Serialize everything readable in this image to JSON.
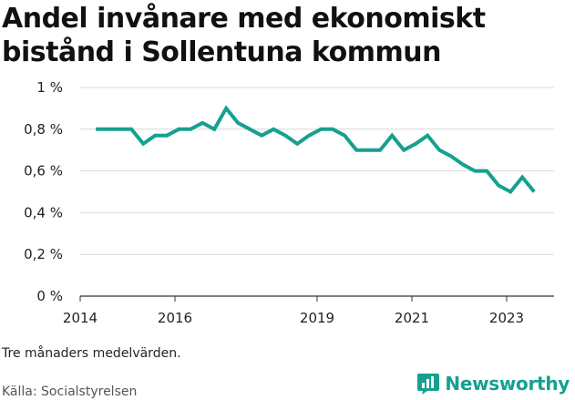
{
  "header": {
    "title": "Andel invånare med ekonomiskt bistånd i Sollentuna kommun"
  },
  "footer": {
    "note": "Tre månaders medelvärden.",
    "source": "Källa: Socialstyrelsen",
    "brand": "Newsworthy"
  },
  "colors": {
    "line": "#16a08f",
    "grid": "#d9d9d9",
    "axis": "#333333",
    "brand": "#16a08f"
  },
  "chart_data": {
    "type": "line",
    "title": "Andel invånare med ekonomiskt bistånd i Sollentuna kommun",
    "xlabel": "",
    "ylabel": "",
    "ylim": [
      0,
      1
    ],
    "xlim": [
      2014.0,
      2024.0
    ],
    "grid": true,
    "y_ticks": [
      {
        "value": 0,
        "label": "0 %"
      },
      {
        "value": 0.2,
        "label": "0,2 %"
      },
      {
        "value": 0.4,
        "label": "0,4 %"
      },
      {
        "value": 0.6,
        "label": "0,6 %"
      },
      {
        "value": 0.8,
        "label": "0,8 %"
      },
      {
        "value": 1,
        "label": "1 %"
      }
    ],
    "x_ticks": [
      {
        "value": 2014,
        "label": "2014"
      },
      {
        "value": 2016,
        "label": "2016"
      },
      {
        "value": 2019,
        "label": "2019"
      },
      {
        "value": 2021,
        "label": "2021"
      },
      {
        "value": 2023,
        "label": "2023"
      }
    ],
    "series": [
      {
        "x": [
          2014.33,
          2014.58,
          2014.83,
          2015.08,
          2015.33,
          2015.58,
          2015.83,
          2016.08,
          2016.33,
          2016.58,
          2016.83,
          2017.08,
          2017.33,
          2017.58,
          2017.83,
          2018.08,
          2018.33,
          2018.58,
          2018.83,
          2019.08,
          2019.33,
          2019.58,
          2019.83,
          2020.08,
          2020.33,
          2020.58,
          2020.83,
          2021.08,
          2021.33,
          2021.58,
          2021.83,
          2022.08,
          2022.33,
          2022.58,
          2022.83,
          2023.08,
          2023.33,
          2023.58
        ],
        "values": [
          0.8,
          0.8,
          0.8,
          0.8,
          0.73,
          0.77,
          0.77,
          0.8,
          0.8,
          0.83,
          0.8,
          0.9,
          0.83,
          0.8,
          0.77,
          0.8,
          0.77,
          0.73,
          0.77,
          0.8,
          0.8,
          0.77,
          0.7,
          0.7,
          0.7,
          0.77,
          0.7,
          0.73,
          0.77,
          0.7,
          0.67,
          0.63,
          0.6,
          0.6,
          0.53,
          0.5,
          0.57,
          0.5
        ]
      }
    ]
  }
}
